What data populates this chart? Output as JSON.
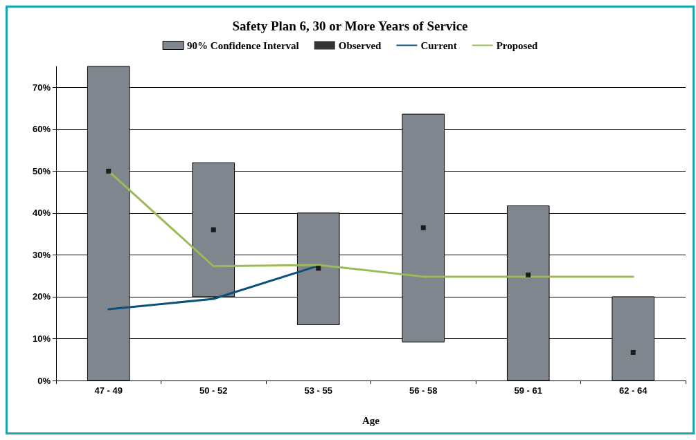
{
  "chart_data": {
    "type": "bar",
    "title": "Safety Plan 6, 30 or More Years of Service",
    "xlabel": "Age",
    "categories": [
      "47 - 49",
      "50 - 52",
      "53 - 55",
      "56 - 58",
      "59 - 61",
      "62 - 64"
    ],
    "series": [
      {
        "name": "90% Confidence Interval",
        "color": "#80868e",
        "base": [
          0,
          20,
          13.3,
          9.2,
          0,
          0
        ],
        "values": [
          75,
          32,
          26.7,
          54.4,
          41.7,
          20
        ]
      },
      {
        "name": "Observed",
        "type": "scatter",
        "color": "#000000",
        "marker": "square",
        "values": [
          50,
          36,
          26.8,
          36.5,
          25.2,
          6.7
        ]
      },
      {
        "name": "Current",
        "type": "line",
        "color": "#0b4f7c",
        "values": [
          17,
          19.5,
          27.4,
          null,
          null,
          null
        ]
      },
      {
        "name": "Proposed",
        "type": "line",
        "color": "#9bbb59",
        "values": [
          50,
          27.3,
          27.6,
          24.8,
          24.8,
          24.8
        ]
      }
    ],
    "ylim": [
      0,
      75
    ],
    "yticks": [
      {
        "value": 0,
        "label": "0%"
      },
      {
        "value": 10,
        "label": "10%"
      },
      {
        "value": 20,
        "label": "20%"
      },
      {
        "value": 30,
        "label": "30%"
      },
      {
        "value": 40,
        "label": "40%"
      },
      {
        "value": 50,
        "label": "50%"
      },
      {
        "value": 60,
        "label": "60%"
      },
      {
        "value": 70,
        "label": "70%"
      }
    ],
    "grid": "y",
    "legend": "top",
    "marker": "none",
    "line_style": "solid"
  }
}
